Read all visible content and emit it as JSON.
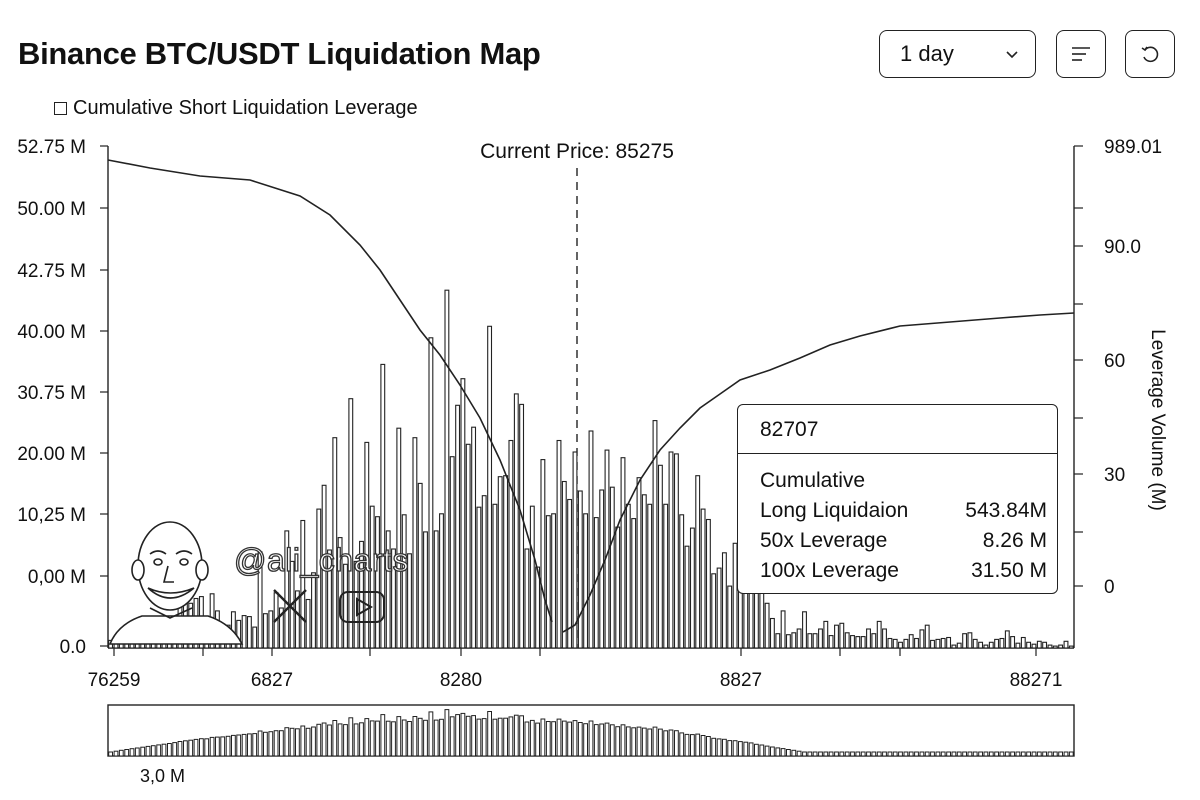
{
  "header": {
    "title": "Binance BTC/USDT Liquidation Map",
    "timeframe_value": "1 day",
    "menu_icon": "menu-lines-icon",
    "refresh_icon": "refresh-icon"
  },
  "legend": {
    "label": "Cumulative Short Liquidation Leverage"
  },
  "watermark": {
    "handle": "@ali_charts",
    "icons": [
      "x-logo-icon",
      "youtube-play-icon"
    ]
  },
  "tooltip": {
    "title": "82707",
    "heading": "Cumulative",
    "rows": [
      {
        "label": "Long Liquidaion",
        "value": "543.84M"
      },
      {
        "label": "50x Leverage",
        "value": "8.26 M"
      },
      {
        "label": "100x Leverage",
        "value": "31.50 M"
      }
    ]
  },
  "chart_data": {
    "type": "bar",
    "title": "Binance BTC/USDT Liquidation Map",
    "annotation": "Current Price: 85275",
    "x_tick_labels": [
      "76259",
      "6827",
      "8280",
      "8827",
      "88271"
    ],
    "y_left_tick_labels": [
      "52.75 M",
      "50.00 M",
      "42.75 M",
      "40.00 M",
      "30.75 M",
      "20.00 M",
      "10,25 M",
      "0,00 M",
      "0.0"
    ],
    "y_right_tick_labels": [
      "989.01",
      "90.0",
      "60",
      "30",
      "0"
    ],
    "y_right_label": "Leverage Volume (M)",
    "overview_label": "3,0 M",
    "bar_scale": [
      0,
      52.75
    ],
    "bars": [
      0.8,
      1.0,
      1.2,
      0.8,
      1.3,
      0.6,
      0.9,
      1.0,
      0.7,
      1.4,
      1.2,
      0.9,
      2.2,
      5.4,
      5.0,
      4.7,
      5.2,
      5.4,
      1.6,
      5.7,
      3.9,
      2.0,
      2.4,
      3.8,
      2.9,
      3.4,
      3.3,
      2.2,
      10.1,
      3.6,
      3.9,
      5.8,
      4.2,
      12.3,
      9.1,
      6.0,
      13.4,
      5.1,
      7.9,
      14.6,
      17.1,
      10.3,
      22.1,
      11.6,
      8.8,
      26.2,
      9.1,
      11.2,
      21.6,
      14.9,
      13.8,
      29.8,
      12.3,
      10.4,
      23.1,
      14.0,
      9.9,
      22.1,
      17.3,
      12.2,
      32.6,
      12.3,
      14.1,
      37.6,
      20.1,
      25.5,
      28.3,
      21.4,
      23.2,
      14.8,
      16.0,
      33.8,
      15.1,
      18.0,
      18.1,
      21.8,
      26.7,
      25.6,
      10.4,
      14.9,
      8.5,
      19.8,
      13.9,
      14.1,
      21.8,
      17.5,
      15.6,
      20.6,
      16.5,
      14.1,
      22.8,
      13.7,
      16.6,
      20.8,
      16.9,
      12.7,
      20.0,
      15.1,
      13.6,
      17.9,
      16.1,
      15.1,
      23.9,
      19.2,
      15.1,
      20.6,
      20.4,
      14.0,
      10.7,
      12.6,
      18.1,
      14.6,
      13.5,
      7.8,
      8.4,
      10.0,
      6.5,
      11.0,
      9.6,
      11.2,
      12.4,
      6.6,
      8.2,
      4.7,
      3.1,
      1.5,
      3.9,
      1.4,
      1.6,
      2.0,
      3.8,
      1.5,
      1.5,
      2.0,
      2.8,
      1.3,
      2.4,
      2.6,
      1.6,
      1.3,
      1.2,
      1.2,
      2.0,
      1.5,
      2.8,
      2.0,
      1.0,
      0.9,
      0.6,
      0.9,
      1.4,
      1.0,
      1.9,
      2.4,
      0.8,
      0.9,
      1.0,
      1.1,
      0.3,
      0.5,
      1.5,
      1.6,
      0.9,
      0.6,
      0.3,
      0.6,
      0.9,
      1.0,
      1.8,
      1.2,
      0.5,
      1.1,
      0.6,
      0.4,
      0.7,
      0.6,
      0.3,
      0.2,
      0.3,
      0.7,
      0.2
    ],
    "series": [
      {
        "name": "Cumulative Short Liquidation Leverage",
        "curve": "cumulative-long-left"
      },
      {
        "name": "Cumulative Short Liquidation Leverage",
        "curve": "cumulative-short-right"
      }
    ],
    "grid": false
  }
}
